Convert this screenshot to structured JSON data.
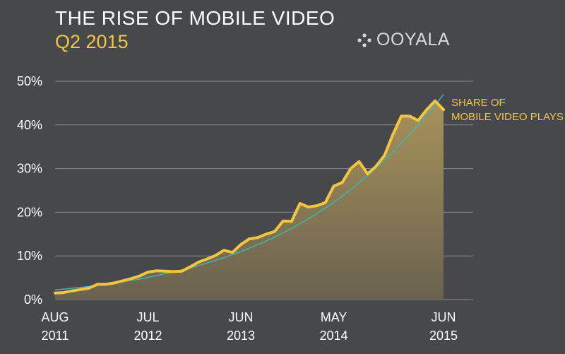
{
  "header": {
    "title": "THE RISE OF MOBILE VIDEO",
    "subtitle": "Q2 2015"
  },
  "logo": {
    "text": "OOYALA",
    "icon": "ooyala-dots-icon"
  },
  "colors": {
    "background": "#47484b",
    "series": "#f4c542",
    "trend": "#3fb6b0",
    "grid": "#8a8b8d"
  },
  "chart_data": {
    "type": "line",
    "ylim": [
      0,
      50
    ],
    "yticks": [
      "0%",
      "10%",
      "20%",
      "30%",
      "40%",
      "50%"
    ],
    "ytick_values": [
      0,
      10,
      20,
      30,
      40,
      50
    ],
    "xticks": [
      {
        "line1": "AUG",
        "line2": "2011",
        "index": 0
      },
      {
        "line1": "JUL",
        "line2": "2012",
        "index": 11
      },
      {
        "line1": "JUN",
        "line2": "2013",
        "index": 22
      },
      {
        "line1": "MAY",
        "line2": "2014",
        "index": 33
      },
      {
        "line1": "JUN",
        "line2": "2015",
        "index": 46
      }
    ],
    "x": [
      "2011-08",
      "2011-09",
      "2011-10",
      "2011-11",
      "2011-12",
      "2012-01",
      "2012-02",
      "2012-03",
      "2012-04",
      "2012-05",
      "2012-06",
      "2012-07",
      "2012-08",
      "2012-09",
      "2012-10",
      "2012-11",
      "2012-12",
      "2013-01",
      "2013-02",
      "2013-03",
      "2013-04",
      "2013-05",
      "2013-06",
      "2013-07",
      "2013-08",
      "2013-09",
      "2013-10",
      "2013-11",
      "2013-12",
      "2014-01",
      "2014-02",
      "2014-03",
      "2014-04",
      "2014-05",
      "2014-06",
      "2014-07",
      "2014-08",
      "2014-09",
      "2014-10",
      "2014-11",
      "2014-12",
      "2015-01",
      "2015-02",
      "2015-03",
      "2015-04",
      "2015-05",
      "2015-06"
    ],
    "series": [
      {
        "name": "SHARE OF MOBILE VIDEO PLAYS",
        "name_lines": [
          "SHARE OF",
          "MOBILE VIDEO PLAYS"
        ],
        "values": [
          1.5,
          1.6,
          2.0,
          2.3,
          2.6,
          3.5,
          3.5,
          3.8,
          4.3,
          4.8,
          5.4,
          6.3,
          6.6,
          6.5,
          6.4,
          6.5,
          7.5,
          8.6,
          9.3,
          10.1,
          11.3,
          10.8,
          12.6,
          13.9,
          14.2,
          15.0,
          15.6,
          18.0,
          17.9,
          22.0,
          21.2,
          21.5,
          22.2,
          26.0,
          26.8,
          30.0,
          31.6,
          28.8,
          30.5,
          33.0,
          37.8,
          42.0,
          42.0,
          41.0,
          43.5,
          45.5,
          43.5
        ]
      }
    ],
    "trend": {
      "values": [
        2.2,
        2.4,
        2.6,
        2.8,
        3.0,
        3.3,
        3.5,
        3.8,
        4.1,
        4.4,
        4.7,
        5.1,
        5.5,
        5.9,
        6.3,
        6.8,
        7.3,
        7.8,
        8.4,
        9.0,
        9.6,
        10.3,
        11.0,
        11.8,
        12.6,
        13.4,
        14.3,
        15.3,
        16.3,
        17.4,
        18.5,
        19.7,
        21.0,
        22.3,
        23.7,
        25.2,
        26.8,
        28.4,
        30.1,
        31.9,
        33.8,
        35.8,
        37.9,
        40.0,
        42.2,
        44.5,
        47.0
      ]
    },
    "grid": true,
    "legend_placement": "right-of-line-end"
  }
}
